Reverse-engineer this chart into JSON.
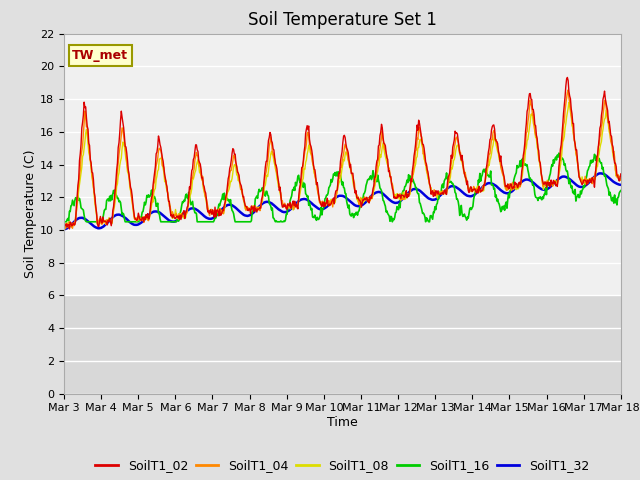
{
  "title": "Soil Temperature Set 1",
  "xlabel": "Time",
  "ylabel": "Soil Temperature (C)",
  "ylim": [
    0,
    22
  ],
  "series_labels": [
    "SoilT1_02",
    "SoilT1_04",
    "SoilT1_08",
    "SoilT1_16",
    "SoilT1_32"
  ],
  "series_colors": [
    "#dd0000",
    "#ff8800",
    "#dddd00",
    "#00cc00",
    "#0000dd"
  ],
  "line_widths": [
    1.0,
    1.0,
    1.0,
    1.2,
    1.8
  ],
  "xtick_labels": [
    "Mar 3",
    "Mar 4",
    "Mar 5",
    "Mar 6",
    "Mar 7",
    "Mar 8",
    "Mar 9",
    "Mar 10",
    "Mar 11",
    "Mar 12",
    "Mar 13",
    "Mar 14",
    "Mar 15",
    "Mar 16",
    "Mar 17",
    "Mar 18"
  ],
  "bg_color": "#e0e0e0",
  "plot_bg_upper_color": "#f0f0f0",
  "plot_bg_lower_color": "#d8d8d8",
  "grid_color": "#ffffff",
  "title_fontsize": 12,
  "axis_label_fontsize": 9,
  "tick_fontsize": 8,
  "legend_fontsize": 9,
  "annotation": "TW_met",
  "annot_fg": "#aa0000",
  "annot_bg": "#ffffcc",
  "annot_edge": "#999900"
}
